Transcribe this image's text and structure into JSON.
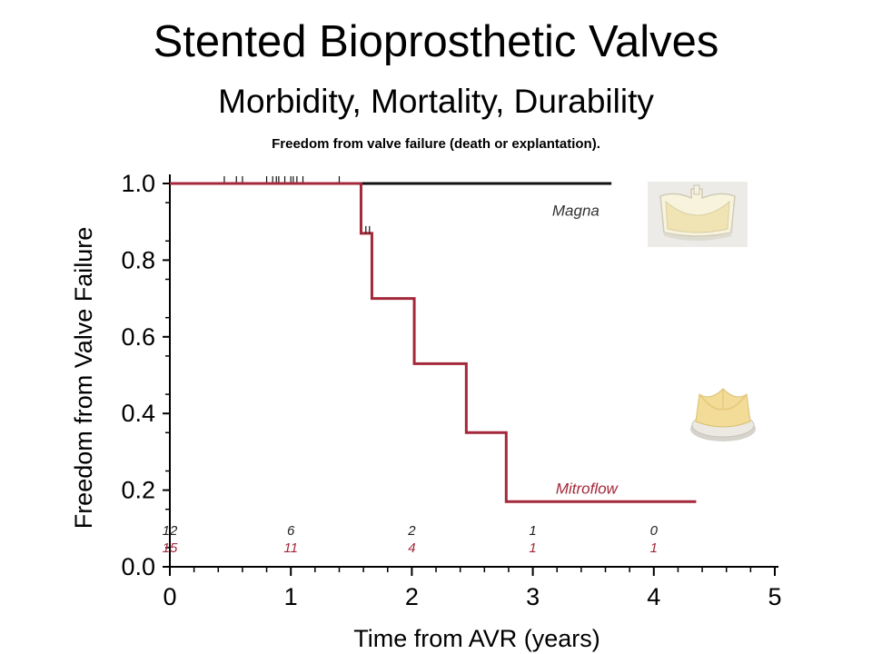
{
  "header": {
    "title": "Stented Bioprosthetic Valves",
    "subtitle": "Morbidity, Mortality, Durability",
    "caption": "Freedom from valve failure (death or explantation)."
  },
  "icons": {
    "magna_valve": "magna-valve-image",
    "mitroflow_valve": "mitroflow-valve-image"
  },
  "chart_data": {
    "type": "line",
    "title": "Freedom from valve failure (death or explantation).",
    "xlabel": "Time from AVR (years)",
    "ylabel": "Freedom from Valve Failure",
    "xlim": [
      0,
      5
    ],
    "ylim": [
      0.0,
      1.0
    ],
    "xticks": [
      0,
      1,
      2,
      3,
      4,
      5
    ],
    "xtick_labels": [
      "0",
      "1",
      "2",
      "3",
      "4",
      "5"
    ],
    "yticks": [
      0.0,
      0.2,
      0.4,
      0.6,
      0.8,
      1.0
    ],
    "ytick_labels": [
      "0.0",
      "0.2",
      "0.4",
      "0.6",
      "0.8",
      "1.0"
    ],
    "grid": false,
    "series": [
      {
        "name": "Magna",
        "color": "#111111",
        "step_x": [
          0,
          3.65
        ],
        "step_y": [
          1.0,
          1.0
        ],
        "censor_x": [
          0.45,
          0.55,
          0.6,
          0.8,
          0.85,
          0.88,
          0.9,
          0.95,
          1.0,
          1.02,
          1.05,
          1.1,
          1.4
        ],
        "censor_y": [
          1.0,
          1.0,
          1.0,
          1.0,
          1.0,
          1.0,
          1.0,
          1.0,
          1.0,
          1.0,
          1.0,
          1.0,
          1.0
        ],
        "label_at": [
          3.55,
          0.93
        ]
      },
      {
        "name": "Mitroflow",
        "color": "#a3283a",
        "step_x": [
          0,
          1.58,
          1.58,
          1.67,
          1.67,
          2.02,
          2.02,
          2.45,
          2.45,
          2.78,
          2.78,
          4.35
        ],
        "step_y": [
          1.0,
          1.0,
          0.87,
          0.87,
          0.7,
          0.7,
          0.53,
          0.53,
          0.35,
          0.35,
          0.17,
          0.17
        ],
        "censor_x": [
          1.62,
          1.65
        ],
        "censor_y": [
          0.87,
          0.87
        ],
        "label_at": [
          3.7,
          0.205
        ]
      }
    ],
    "numbers_at_risk": {
      "x": [
        0,
        1,
        2,
        3,
        4
      ],
      "Magna": [
        "12",
        "6",
        "2",
        "1",
        "0"
      ],
      "Mitroflow": [
        "15",
        "11",
        "4",
        "1",
        "1"
      ]
    }
  }
}
